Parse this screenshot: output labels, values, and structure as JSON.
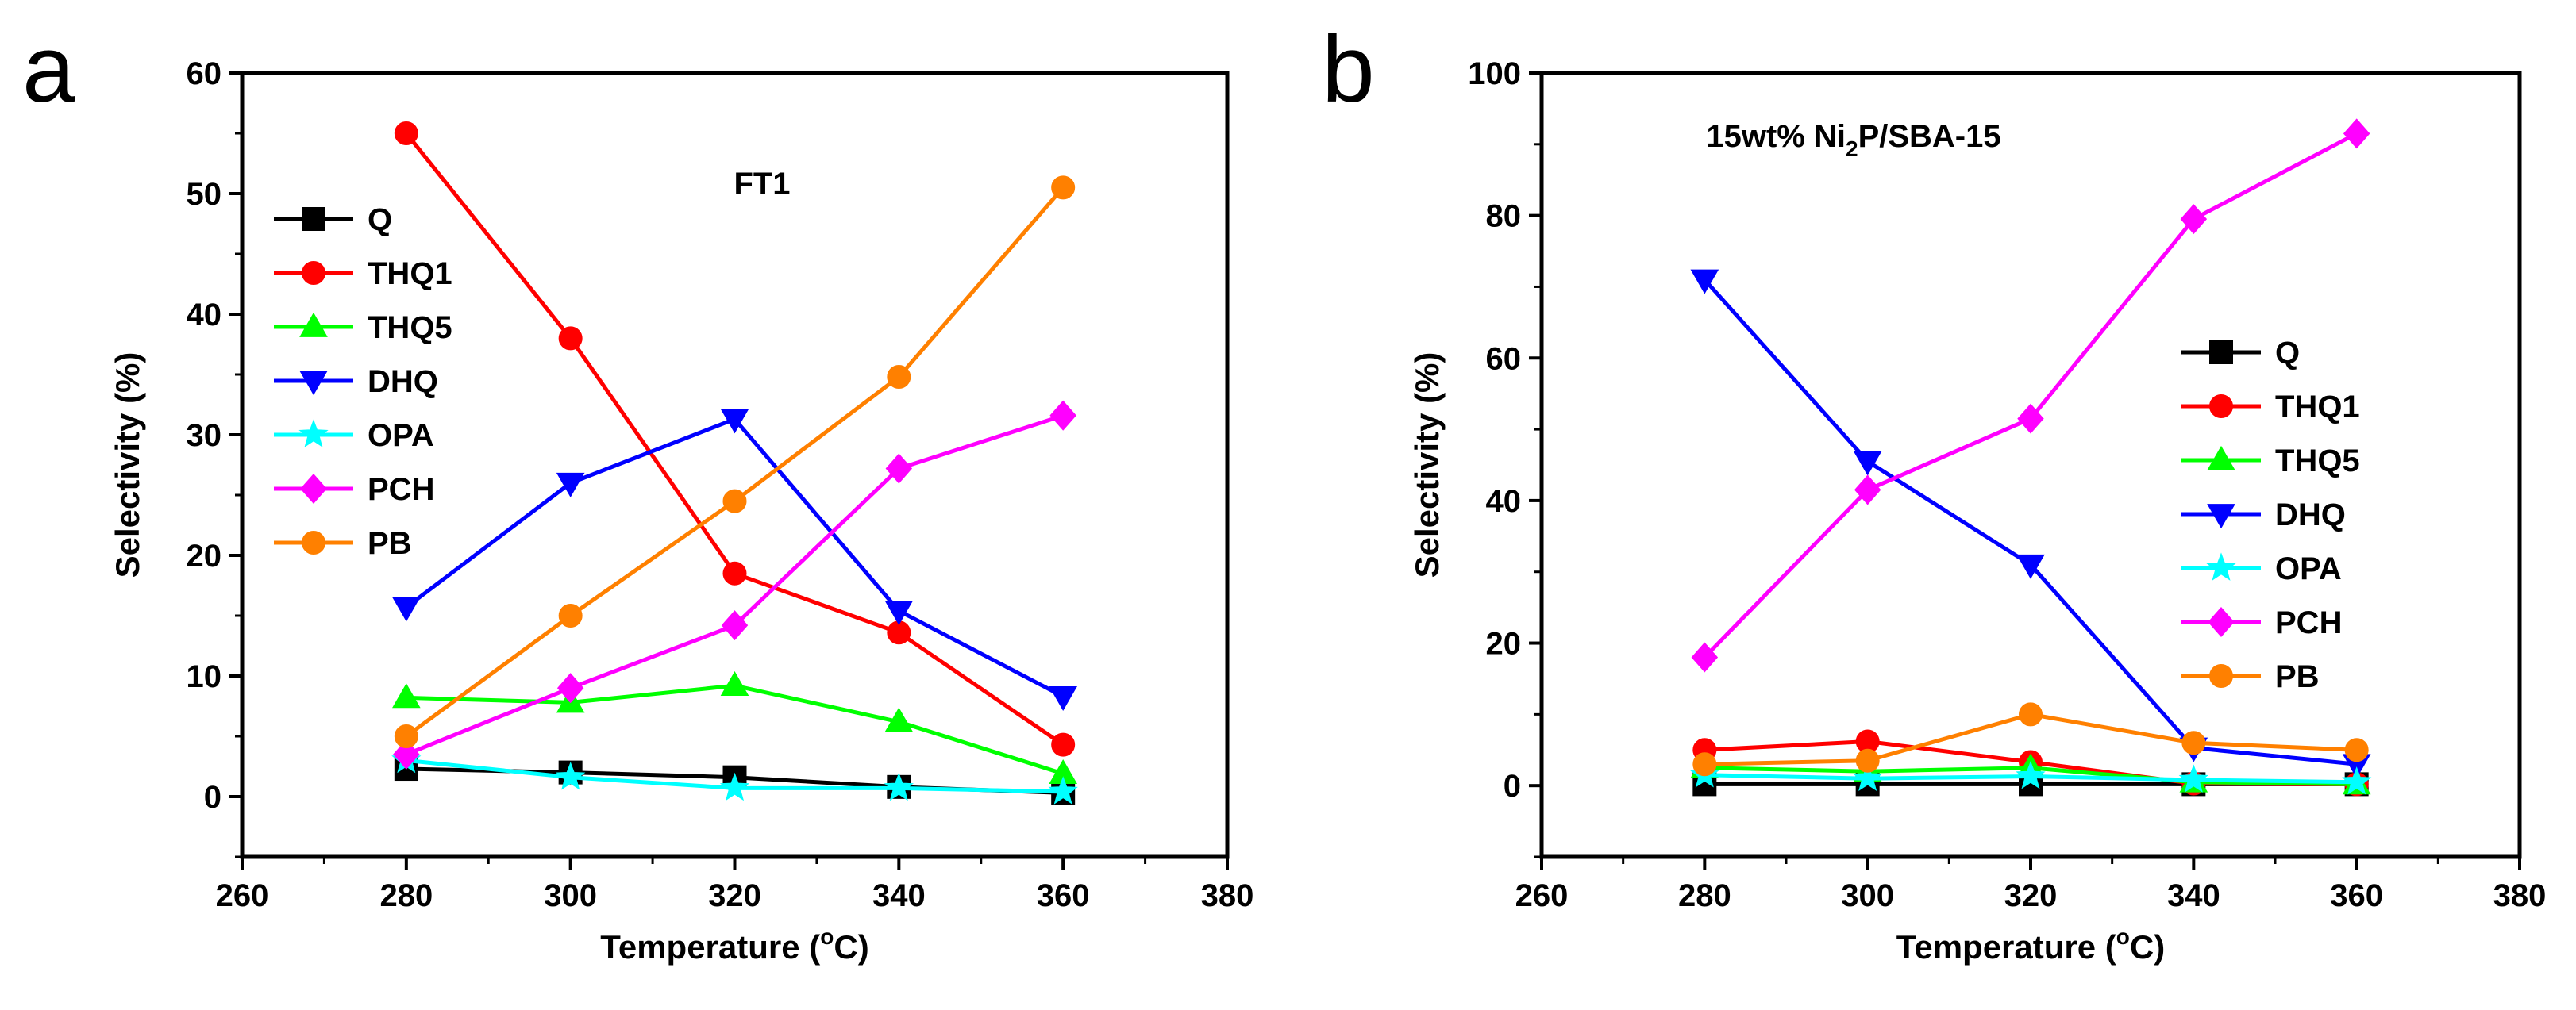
{
  "chart_data": [
    {
      "type": "line",
      "panel_label": "a",
      "annotation": "FT1",
      "xlabel": "Temperature (",
      "xlabel_degree": "o",
      "xlabel_unit": "C)",
      "ylabel": "Selectivity (%)",
      "xlim": [
        260,
        380
      ],
      "ylim": [
        -5,
        60
      ],
      "x_ticks": [
        260,
        280,
        300,
        320,
        340,
        360,
        380
      ],
      "y_ticks": [
        0,
        10,
        20,
        30,
        40,
        50,
        60
      ],
      "legend_position": "left",
      "x": [
        280,
        300,
        320,
        340,
        360
      ],
      "series": [
        {
          "name": "Q",
          "color": "#000000",
          "marker": "square",
          "values": [
            2.3,
            2.0,
            1.6,
            0.8,
            0.3
          ]
        },
        {
          "name": "THQ1",
          "color": "#ff0000",
          "marker": "circle",
          "values": [
            55.0,
            38.0,
            18.5,
            13.6,
            4.3
          ]
        },
        {
          "name": "THQ5",
          "color": "#00ff00",
          "marker": "triangle-up",
          "values": [
            8.2,
            7.8,
            9.2,
            6.2,
            1.9
          ]
        },
        {
          "name": "DHQ",
          "color": "#0000ff",
          "marker": "triangle-down",
          "values": [
            15.7,
            26.0,
            31.3,
            15.4,
            8.3
          ]
        },
        {
          "name": "OPA",
          "color": "#00ffff",
          "marker": "star",
          "values": [
            3.0,
            1.6,
            0.7,
            0.7,
            0.4
          ]
        },
        {
          "name": "PCH",
          "color": "#ff00ff",
          "marker": "diamond",
          "values": [
            3.5,
            9.0,
            14.2,
            27.2,
            31.6
          ]
        },
        {
          "name": "PB",
          "color": "#ff8000",
          "marker": "circle",
          "values": [
            5.0,
            15.0,
            24.5,
            34.8,
            50.5
          ]
        }
      ]
    },
    {
      "type": "line",
      "panel_label": "b",
      "annotation_main": "15wt% Ni",
      "annotation_sub": "2",
      "annotation_tail": "P/SBA-15",
      "xlabel": "Temperature (",
      "xlabel_degree": "o",
      "xlabel_unit": "C)",
      "ylabel": "Selectivity (%)",
      "xlim": [
        260,
        380
      ],
      "ylim": [
        -10,
        100
      ],
      "x_ticks": [
        260,
        280,
        300,
        320,
        340,
        360,
        380
      ],
      "y_ticks": [
        0,
        20,
        40,
        60,
        80,
        100
      ],
      "legend_position": "right",
      "x": [
        280,
        300,
        320,
        340,
        360
      ],
      "series": [
        {
          "name": "Q",
          "color": "#000000",
          "marker": "square",
          "values": [
            0.2,
            0.2,
            0.2,
            0.2,
            0.2
          ]
        },
        {
          "name": "THQ1",
          "color": "#ff0000",
          "marker": "circle",
          "values": [
            5.0,
            6.2,
            3.3,
            0.3,
            0.2
          ]
        },
        {
          "name": "THQ5",
          "color": "#00ff00",
          "marker": "triangle-up",
          "values": [
            2.5,
            2.0,
            2.5,
            0.5,
            0.2
          ]
        },
        {
          "name": "DHQ",
          "color": "#0000ff",
          "marker": "triangle-down",
          "values": [
            71.0,
            45.5,
            31.0,
            5.3,
            3.0
          ]
        },
        {
          "name": "OPA",
          "color": "#00ffff",
          "marker": "star",
          "values": [
            1.5,
            1.0,
            1.3,
            0.8,
            0.5
          ]
        },
        {
          "name": "PCH",
          "color": "#ff00ff",
          "marker": "diamond",
          "values": [
            18.0,
            41.5,
            51.5,
            79.5,
            91.5
          ]
        },
        {
          "name": "PB",
          "color": "#ff8000",
          "marker": "circle",
          "values": [
            3.0,
            3.5,
            10.0,
            6.0,
            5.0
          ]
        }
      ]
    }
  ]
}
